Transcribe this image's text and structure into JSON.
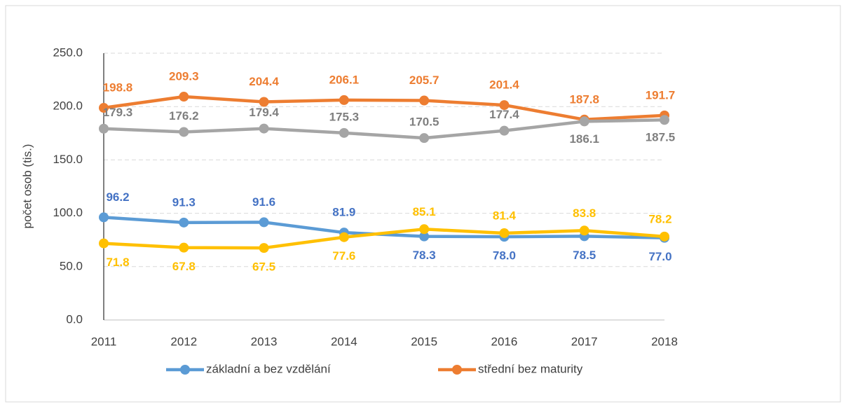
{
  "chart_data": {
    "type": "line",
    "y_label": "počet osob (tis.)",
    "categories": [
      "2011",
      "2012",
      "2013",
      "2014",
      "2015",
      "2016",
      "2017",
      "2018"
    ],
    "series": [
      {
        "name": "základní a bez vzdělání",
        "color": "#5b9bd5",
        "label_color": "#4472c4",
        "values": [
          96.2,
          91.3,
          91.6,
          81.9,
          78.3,
          78.0,
          78.5,
          77.0
        ],
        "value_labels": [
          "96.2",
          "91.3",
          "91.6",
          "81.9",
          "78.3",
          "78.0",
          "78.5",
          "77.0"
        ]
      },
      {
        "name": "střední bez maturity",
        "color": "#ed7d31",
        "label_color": "#ed7d31",
        "values": [
          198.8,
          209.3,
          204.4,
          206.1,
          205.7,
          201.4,
          187.8,
          191.7
        ],
        "value_labels": [
          "198.8",
          "209.3",
          "204.4",
          "206.1",
          "205.7",
          "201.4",
          "187.8",
          "191.7"
        ]
      },
      {
        "color": "#a5a5a5",
        "label_color": "#7f7f7f",
        "values": [
          179.3,
          176.2,
          179.4,
          175.3,
          170.5,
          177.4,
          186.1,
          187.5
        ],
        "value_labels": [
          "179.3",
          "176.2",
          "179.4",
          "175.3",
          "170.5",
          "177.4",
          "186.1",
          "187.5"
        ]
      },
      {
        "color": "#ffc000",
        "label_color": "#ffc000",
        "values": [
          71.8,
          67.8,
          67.5,
          77.6,
          85.1,
          81.4,
          83.8,
          78.2
        ],
        "value_labels": [
          "71.8",
          "67.8",
          "67.5",
          "77.6",
          "85.1",
          "81.4",
          "83.8",
          "78.2"
        ]
      }
    ],
    "ylim": [
      0,
      250
    ],
    "yticks": [
      {
        "value": 0,
        "label": "0.0"
      },
      {
        "value": 50,
        "label": "50.0"
      },
      {
        "value": 100,
        "label": "100.0"
      },
      {
        "value": 150,
        "label": "150.0"
      },
      {
        "value": 200,
        "label": "200.0"
      },
      {
        "value": 250,
        "label": "250.0"
      }
    ],
    "grid": true
  }
}
